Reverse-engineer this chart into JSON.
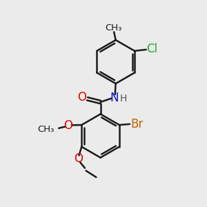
{
  "background_color": "#ebebeb",
  "bond_color": "#1a1a1a",
  "bond_width": 1.8,
  "figsize": [
    3.0,
    3.0
  ],
  "dpi": 100,
  "colors": {
    "N": "#1010cc",
    "O": "#dd0000",
    "Cl": "#22aa22",
    "Br": "#bb6600",
    "C": "#1a1a1a",
    "H": "#555555"
  }
}
